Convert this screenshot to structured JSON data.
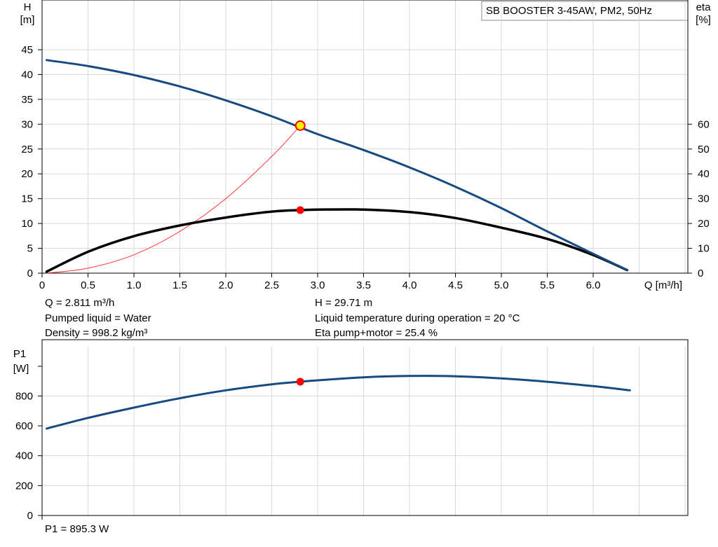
{
  "title": "SB BOOSTER 3-45AW, PM2, 50Hz",
  "info": {
    "q": "Q = 2.811 m³/h",
    "h": "H = 29.71 m",
    "liquid": "Pumped liquid = Water",
    "temperature": "Liquid temperature during operation = 20 °C",
    "density": "Density = 998.2 kg/m³",
    "eta": "Eta pump+motor = 25.4 %",
    "p1": "P1 = 895.3 W"
  },
  "colors": {
    "curve": "#174a80",
    "eta_curve": "#000000",
    "system_curve": "#ff3333",
    "duty_point": "#ff0000",
    "duty_fill": "#ffee00",
    "grid": "#d9d9d9"
  },
  "chart_data": [
    {
      "type": "line",
      "xlabel": "Q [m³/h]",
      "ylabel": "H\n[m]",
      "y2label": "eta\n[%]",
      "xlim": [
        0,
        6.8
      ],
      "ylim": [
        0,
        48
      ],
      "y2lim": [
        0,
        96
      ],
      "xticks": [
        0,
        0.5,
        1.0,
        1.5,
        2.0,
        2.5,
        3.0,
        3.5,
        4.0,
        4.5,
        5.0,
        5.5,
        6.0
      ],
      "xtick_labels": [
        "0",
        "0.5",
        "1.0",
        "1.5",
        "2.0",
        "2.5",
        "3.0",
        "3.5",
        "4.0",
        "4.5",
        "5.0",
        "5.5",
        "6.0"
      ],
      "yticks": [
        0,
        5,
        10,
        15,
        20,
        25,
        30,
        35,
        40,
        45
      ],
      "y2ticks": [
        0,
        10,
        20,
        30,
        40,
        50,
        60
      ],
      "grid": true,
      "series": [
        {
          "axis": "y",
          "x": [
            0.05,
            0.5,
            1.0,
            1.5,
            2.0,
            2.5,
            3.0,
            3.5,
            4.0,
            4.5,
            5.0,
            5.5,
            6.0,
            6.37
          ],
          "y": [
            42.9,
            41.7,
            39.9,
            37.6,
            34.8,
            31.6,
            28.0,
            24.8,
            21.3,
            17.4,
            13.1,
            8.4,
            3.9,
            0.6
          ]
        },
        {
          "axis": "y2",
          "x": [
            0.05,
            0.5,
            1.0,
            1.5,
            2.0,
            2.5,
            2.811,
            3.0,
            3.5,
            4.0,
            4.5,
            5.0,
            5.5,
            6.0,
            6.37
          ],
          "y": [
            0.6,
            8.6,
            14.9,
            19.2,
            22.4,
            24.8,
            25.4,
            25.6,
            25.6,
            24.6,
            22.2,
            18.3,
            13.8,
            7.3,
            1.2
          ]
        },
        {
          "axis": "y",
          "x": [
            0.05,
            0.5,
            1.0,
            1.5,
            2.0,
            2.5,
            2.811
          ],
          "y": [
            0.0,
            1.0,
            3.7,
            8.4,
            15.0,
            23.5,
            29.71
          ]
        }
      ],
      "duty_point": {
        "x": 2.811,
        "h": 29.71,
        "eta": 25.4
      }
    },
    {
      "type": "line",
      "ylabel": "P1\n[W]",
      "xlim": [
        0,
        6.8
      ],
      "ylim": [
        0,
        1000
      ],
      "yticks": [
        0,
        200,
        400,
        600,
        800
      ],
      "grid": true,
      "series": [
        {
          "x": [
            0.05,
            0.5,
            1.0,
            1.5,
            2.0,
            2.5,
            2.811,
            3.0,
            3.5,
            4.0,
            4.5,
            5.0,
            5.5,
            6.0,
            6.4
          ],
          "y": [
            582,
            653,
            722,
            785,
            838,
            878,
            895.3,
            905,
            925,
            934,
            932,
            918,
            895,
            866,
            838
          ]
        }
      ],
      "duty_point": {
        "x": 2.811,
        "p1": 895.3
      }
    }
  ]
}
